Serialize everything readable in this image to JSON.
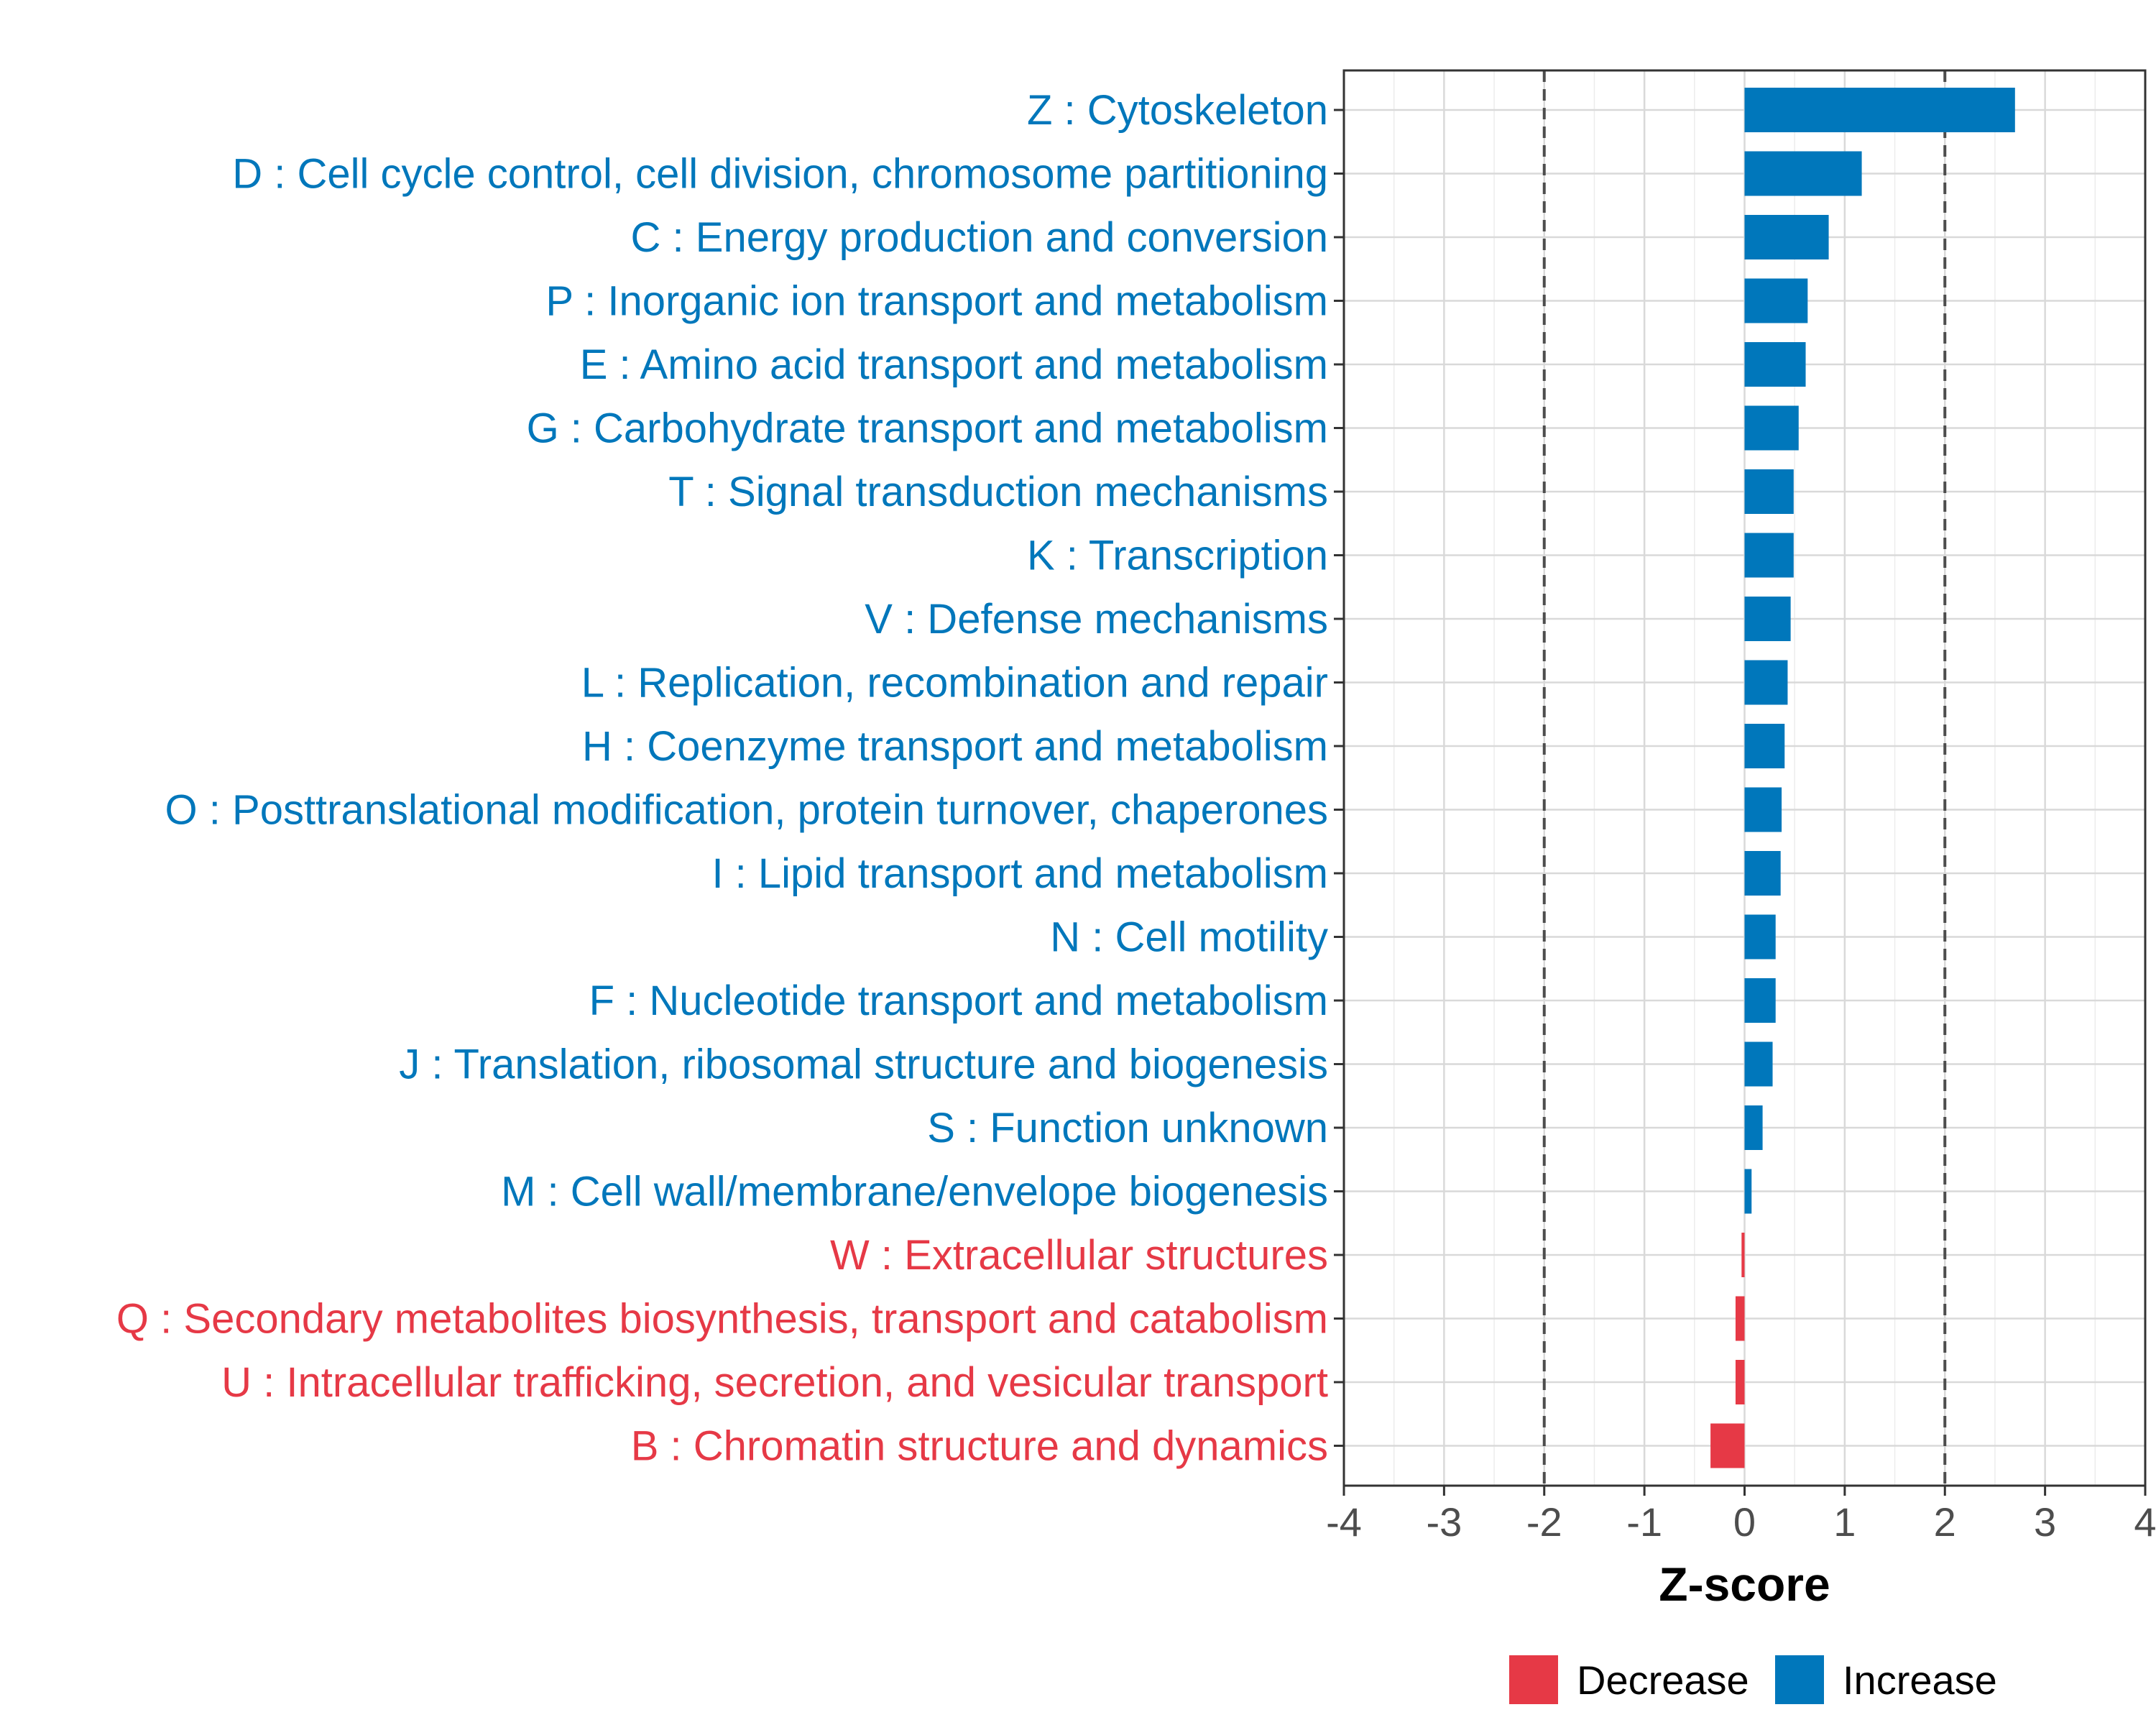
{
  "chart_data": {
    "type": "bar",
    "orientation": "horizontal",
    "xlabel": "Z-score",
    "xlim": [
      -4,
      4
    ],
    "xticks": [
      -4,
      -3,
      -2,
      -1,
      0,
      1,
      2,
      3,
      4
    ],
    "threshold_lines": [
      -2,
      2
    ],
    "grid": true,
    "categories": [
      "Z : Cytoskeleton",
      "D : Cell cycle control, cell division, chromosome partitioning",
      "C : Energy production and conversion",
      "P : Inorganic ion transport and metabolism",
      "E : Amino acid transport and metabolism",
      "G : Carbohydrate transport and metabolism",
      "T : Signal transduction mechanisms",
      "K : Transcription",
      "V : Defense mechanisms",
      "L : Replication, recombination and repair",
      "H : Coenzyme transport and metabolism",
      "O : Posttranslational modification, protein turnover, chaperones",
      "I : Lipid transport and metabolism",
      "N : Cell motility",
      "F : Nucleotide transport and metabolism",
      "J : Translation, ribosomal structure and biogenesis",
      "S : Function unknown",
      "M : Cell wall/membrane/envelope biogenesis",
      "W : Extracellular structures",
      "Q : Secondary metabolites biosynthesis, transport and catabolism",
      "U : Intracellular trafficking, secretion, and vesicular transport",
      "B : Chromatin structure and dynamics"
    ],
    "values": [
      2.7,
      1.17,
      0.84,
      0.63,
      0.61,
      0.54,
      0.49,
      0.49,
      0.46,
      0.43,
      0.4,
      0.37,
      0.36,
      0.31,
      0.31,
      0.28,
      0.18,
      0.07,
      -0.03,
      -0.09,
      -0.09,
      -0.34
    ],
    "legend": {
      "position": "bottom",
      "items": [
        {
          "name": "Decrease",
          "color": "#E63946"
        },
        {
          "name": "Increase",
          "color": "#0077BB"
        }
      ]
    },
    "colors": {
      "increase": "#0077BB",
      "decrease": "#E63946",
      "grid": "#d9d9d9",
      "threshold": "#4d4d4d",
      "panel_border": "#333333"
    }
  }
}
